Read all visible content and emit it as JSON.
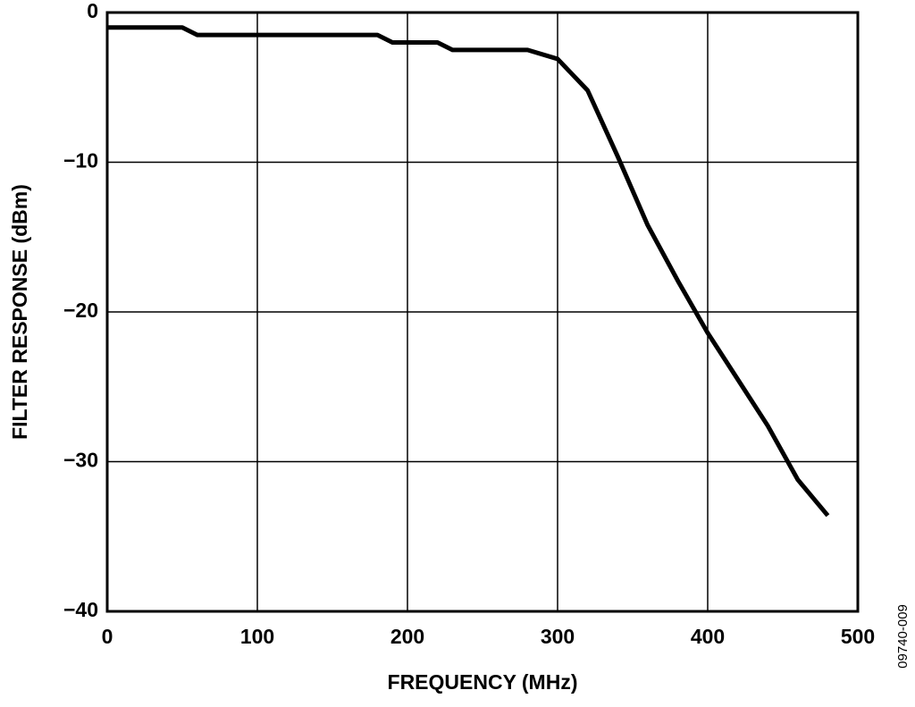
{
  "chart_data": {
    "type": "line",
    "ylabel": "FILTER RESPONSE (dBm)",
    "xlabel": "FREQUENCY (MHz)",
    "annotation": "09740-009",
    "x": [
      0,
      50,
      60,
      180,
      190,
      220,
      230,
      280,
      300,
      320,
      340,
      360,
      380,
      400,
      420,
      440,
      460,
      480
    ],
    "values": [
      -1.0,
      -1.0,
      -1.5,
      -1.5,
      -2.0,
      -2.0,
      -2.5,
      -2.5,
      -3.1,
      -5.2,
      -9.6,
      -14.2,
      -17.9,
      -21.4,
      -24.5,
      -27.6,
      -31.2,
      -33.6
    ],
    "color": "#000000",
    "xlim": [
      0,
      500
    ],
    "xticks": [
      0,
      100,
      200,
      300,
      400,
      500
    ],
    "ylim": [
      -40,
      0
    ],
    "yticks": [
      {
        "value": -40,
        "label": "−40"
      },
      {
        "value": -30,
        "label": "−30"
      },
      {
        "value": -20,
        "label": "−20"
      },
      {
        "value": -10,
        "label": "−10"
      },
      0
    ],
    "grid": true
  }
}
